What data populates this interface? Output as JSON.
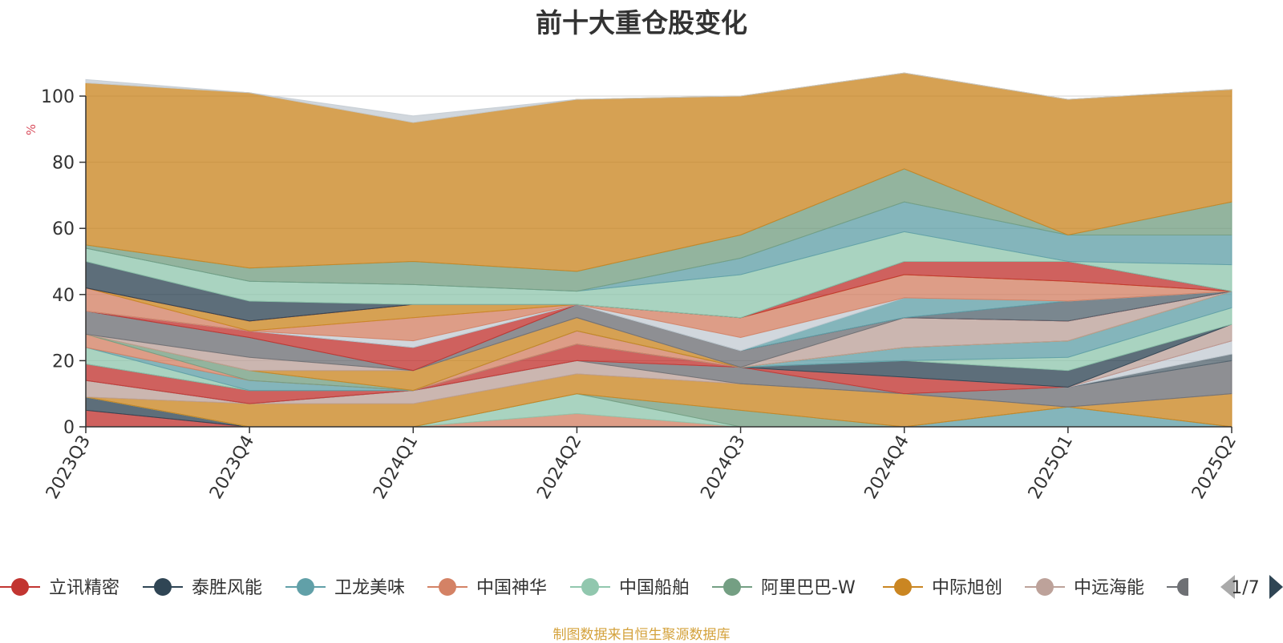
{
  "chart_data": {
    "type": "area",
    "stacked": true,
    "title": "前十大重仓股变化",
    "ylabel": "%",
    "ylim": [
      0,
      100
    ],
    "yticks": [
      0,
      20,
      40,
      60,
      80,
      100
    ],
    "grid": true,
    "legend_position": "bottom",
    "categories": [
      "2023Q3",
      "2023Q4",
      "2024Q1",
      "2024Q2",
      "2024Q3",
      "2024Q4",
      "2025Q1",
      "2025Q2"
    ],
    "series": [
      {
        "name": "立讯精密",
        "color": "#c23531",
        "values": [
          5,
          0,
          0,
          0,
          0,
          0,
          0,
          0
        ]
      },
      {
        "name": "泰胜风能",
        "color": "#2f4554",
        "values": [
          4,
          0,
          0,
          0,
          0,
          0,
          0,
          0
        ]
      },
      {
        "name": "卫龙美味",
        "color": "#61a0a8",
        "values": [
          0,
          0,
          0,
          0,
          0,
          0,
          6,
          0
        ]
      },
      {
        "name": "中国神华",
        "color": "#d48265",
        "values": [
          0,
          0,
          0,
          4,
          0,
          0,
          0,
          0
        ]
      },
      {
        "name": "中国船舶",
        "color": "#91c7ae",
        "values": [
          0,
          0,
          0,
          6,
          0,
          0,
          0,
          0
        ]
      },
      {
        "name": "阿里巴巴-W",
        "color": "#749f83",
        "values": [
          0,
          0,
          0,
          0,
          5,
          0,
          0,
          0
        ]
      },
      {
        "name": "中际旭创",
        "color": "#ca8622",
        "values": [
          0,
          7,
          7,
          6,
          8,
          10,
          0,
          10
        ]
      },
      {
        "name": "中远海能",
        "color": "#bda29a",
        "values": [
          5,
          0,
          4,
          4,
          0,
          0,
          0,
          0
        ]
      },
      {
        "name": "",
        "color": "#6e7074",
        "values": [
          0,
          0,
          0,
          0,
          5,
          0,
          6,
          10
        ]
      },
      {
        "name": "",
        "color": "#546570",
        "values": [
          0,
          0,
          0,
          0,
          0,
          0,
          0,
          2
        ]
      },
      {
        "name": "",
        "color": "#c4ccd3",
        "values": [
          0,
          0,
          0,
          0,
          0,
          0,
          0,
          4
        ]
      },
      {
        "name": "",
        "color": "#c23531",
        "values": [
          5,
          4,
          0,
          5,
          0,
          5,
          0,
          0
        ]
      },
      {
        "name": "",
        "color": "#bda29a",
        "values": [
          0,
          0,
          0,
          0,
          0,
          0,
          0,
          5
        ]
      },
      {
        "name": "",
        "color": "#2f4554",
        "values": [
          0,
          0,
          0,
          0,
          0,
          5,
          5,
          0
        ]
      },
      {
        "name": "",
        "color": "#91c7ae",
        "values": [
          5,
          0,
          0,
          0,
          0,
          0,
          4,
          5
        ]
      },
      {
        "name": "",
        "color": "#61a0a8",
        "values": [
          0,
          3,
          0,
          0,
          0,
          4,
          5,
          5
        ]
      },
      {
        "name": "",
        "color": "#d48265",
        "values": [
          4,
          0,
          0,
          4,
          0,
          0,
          0,
          0
        ]
      },
      {
        "name": "",
        "color": "#749f83",
        "values": [
          0,
          3,
          0,
          0,
          0,
          0,
          0,
          0
        ]
      },
      {
        "name": "",
        "color": "#ca8622",
        "values": [
          0,
          0,
          6,
          4,
          0,
          0,
          0,
          0
        ]
      },
      {
        "name": "",
        "color": "#bda29a",
        "values": [
          0,
          4,
          0,
          0,
          0,
          9,
          6,
          0
        ]
      },
      {
        "name": "",
        "color": "#6e7074",
        "values": [
          7,
          6,
          0,
          4,
          5,
          0,
          0,
          0
        ]
      },
      {
        "name": "",
        "color": "#c23531",
        "values": [
          0,
          2,
          7,
          0,
          0,
          0,
          0,
          0
        ]
      },
      {
        "name": "",
        "color": "#546570",
        "values": [
          0,
          0,
          0,
          0,
          0,
          0,
          6,
          0
        ]
      },
      {
        "name": "",
        "color": "#61a0a8",
        "values": [
          0,
          0,
          0,
          0,
          0,
          6,
          0,
          0
        ]
      },
      {
        "name": "",
        "color": "#c4ccd3",
        "values": [
          0,
          0,
          2,
          0,
          4,
          0,
          0,
          0
        ]
      },
      {
        "name": "",
        "color": "#d48265",
        "values": [
          7,
          0,
          7,
          0,
          6,
          7,
          6,
          0
        ]
      },
      {
        "name": "",
        "color": "#ca8622",
        "values": [
          0,
          3,
          4,
          0,
          0,
          0,
          0,
          0
        ]
      },
      {
        "name": "",
        "color": "#c23531",
        "values": [
          0,
          0,
          0,
          0,
          0,
          4,
          6,
          0
        ]
      },
      {
        "name": "",
        "color": "#2f4554",
        "values": [
          8,
          6,
          0,
          0,
          0,
          0,
          0,
          0
        ]
      },
      {
        "name": "",
        "color": "#91c7ae",
        "values": [
          4,
          6,
          6,
          4,
          13,
          9,
          0,
          8
        ]
      },
      {
        "name": "",
        "color": "#61a0a8",
        "values": [
          0,
          0,
          0,
          0,
          5,
          9,
          8,
          9
        ]
      },
      {
        "name": "",
        "color": "#749f83",
        "values": [
          1,
          4,
          7,
          6,
          7,
          10,
          0,
          10
        ]
      },
      {
        "name": "",
        "color": "#ca8622",
        "values": [
          49,
          53,
          42,
          52,
          42,
          29,
          41,
          34
        ]
      },
      {
        "name": "",
        "color": "#c4ccd3",
        "values": [
          1,
          0,
          2,
          0,
          0,
          0,
          0,
          0
        ]
      }
    ],
    "legend": {
      "items": [
        {
          "name": "立讯精密",
          "color": "#c23531"
        },
        {
          "name": "泰胜风能",
          "color": "#2f4554"
        },
        {
          "name": "卫龙美味",
          "color": "#61a0a8"
        },
        {
          "name": "中国神华",
          "color": "#d48265"
        },
        {
          "name": "中国船舶",
          "color": "#91c7ae"
        },
        {
          "name": "阿里巴巴-W",
          "color": "#749f83"
        },
        {
          "name": "中际旭创",
          "color": "#ca8622"
        },
        {
          "name": "中远海能",
          "color": "#bda29a"
        }
      ],
      "partial_item_color": "#6e7074",
      "page_indicator": "1/7",
      "prev_icon": "triangle-left-icon",
      "next_icon": "triangle-right-icon"
    }
  },
  "source_note": "制图数据来自恒生聚源数据库"
}
